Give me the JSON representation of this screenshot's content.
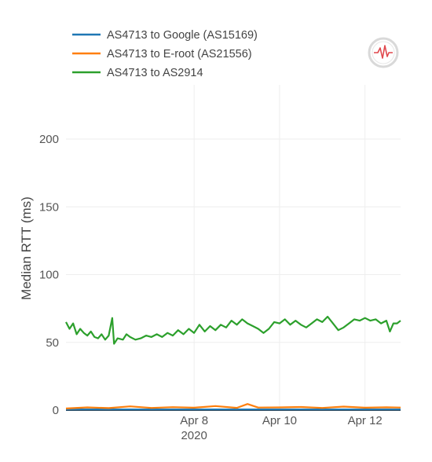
{
  "chart_data": {
    "type": "line",
    "title": "",
    "xlabel": "",
    "ylabel": "Median RTT (ms)",
    "ylim": [
      0,
      240
    ],
    "y_ticks": [
      0,
      50,
      100,
      150,
      200
    ],
    "x_range": [
      "2020-04-05T00:00",
      "2020-04-12T20:00"
    ],
    "x_ticks": [
      {
        "date": "2020-04-08",
        "label": "Apr 8",
        "sublabel": "2020"
      },
      {
        "date": "2020-04-10",
        "label": "Apr 10",
        "sublabel": ""
      },
      {
        "date": "2020-04-12",
        "label": "Apr 12",
        "sublabel": ""
      }
    ],
    "grid": true,
    "legend_position": "top-left",
    "series": [
      {
        "name": "AS4713 to Google (AS15169)",
        "color": "#1f77b4",
        "points": [
          [
            "2020-04-05T00:00",
            0.5
          ],
          [
            "2020-04-07T00:00",
            0.5
          ],
          [
            "2020-04-09T00:00",
            0.5
          ],
          [
            "2020-04-11T00:00",
            0.5
          ],
          [
            "2020-04-12T20:00",
            0.5
          ]
        ]
      },
      {
        "name": "AS4713 to E-root (AS21556)",
        "color": "#ff7f0e",
        "points": [
          [
            "2020-04-05T00:00",
            1.2
          ],
          [
            "2020-04-05T12:00",
            2.0
          ],
          [
            "2020-04-06T00:00",
            1.5
          ],
          [
            "2020-04-06T12:00",
            2.8
          ],
          [
            "2020-04-07T00:00",
            1.6
          ],
          [
            "2020-04-07T12:00",
            2.2
          ],
          [
            "2020-04-08T00:00",
            1.8
          ],
          [
            "2020-04-08T12:00",
            3.0
          ],
          [
            "2020-04-09T00:00",
            1.7
          ],
          [
            "2020-04-09T06:00",
            4.5
          ],
          [
            "2020-04-09T12:00",
            1.9
          ],
          [
            "2020-04-10T00:00",
            2.0
          ],
          [
            "2020-04-10T12:00",
            2.3
          ],
          [
            "2020-04-11T00:00",
            1.6
          ],
          [
            "2020-04-11T12:00",
            2.6
          ],
          [
            "2020-04-12T00:00",
            1.8
          ],
          [
            "2020-04-12T12:00",
            2.1
          ],
          [
            "2020-04-12T20:00",
            1.9
          ]
        ]
      },
      {
        "name": "AS4713 to AS2914",
        "color": "#2ca02c",
        "points": [
          [
            "2020-04-05T00:00",
            65
          ],
          [
            "2020-04-05T02:00",
            60
          ],
          [
            "2020-04-05T04:00",
            64
          ],
          [
            "2020-04-05T06:00",
            56
          ],
          [
            "2020-04-05T08:00",
            60
          ],
          [
            "2020-04-05T10:00",
            57
          ],
          [
            "2020-04-05T12:00",
            55
          ],
          [
            "2020-04-05T14:00",
            58
          ],
          [
            "2020-04-05T16:00",
            54
          ],
          [
            "2020-04-05T18:00",
            53
          ],
          [
            "2020-04-05T20:00",
            56
          ],
          [
            "2020-04-05T22:00",
            52
          ],
          [
            "2020-04-06T00:00",
            55
          ],
          [
            "2020-04-06T02:00",
            68
          ],
          [
            "2020-04-06T03:00",
            49
          ],
          [
            "2020-04-06T05:00",
            53
          ],
          [
            "2020-04-06T08:00",
            52
          ],
          [
            "2020-04-06T10:00",
            56
          ],
          [
            "2020-04-06T12:00",
            54
          ],
          [
            "2020-04-06T15:00",
            52
          ],
          [
            "2020-04-06T18:00",
            53
          ],
          [
            "2020-04-06T21:00",
            55
          ],
          [
            "2020-04-07T00:00",
            54
          ],
          [
            "2020-04-07T03:00",
            56
          ],
          [
            "2020-04-07T06:00",
            54
          ],
          [
            "2020-04-07T09:00",
            57
          ],
          [
            "2020-04-07T12:00",
            55
          ],
          [
            "2020-04-07T15:00",
            59
          ],
          [
            "2020-04-07T18:00",
            56
          ],
          [
            "2020-04-07T21:00",
            60
          ],
          [
            "2020-04-08T00:00",
            57
          ],
          [
            "2020-04-08T03:00",
            63
          ],
          [
            "2020-04-08T06:00",
            58
          ],
          [
            "2020-04-08T09:00",
            62
          ],
          [
            "2020-04-08T12:00",
            59
          ],
          [
            "2020-04-08T15:00",
            63
          ],
          [
            "2020-04-08T18:00",
            61
          ],
          [
            "2020-04-08T21:00",
            66
          ],
          [
            "2020-04-09T00:00",
            63
          ],
          [
            "2020-04-09T03:00",
            67
          ],
          [
            "2020-04-09T06:00",
            64
          ],
          [
            "2020-04-09T09:00",
            62
          ],
          [
            "2020-04-09T12:00",
            60
          ],
          [
            "2020-04-09T15:00",
            57
          ],
          [
            "2020-04-09T18:00",
            60
          ],
          [
            "2020-04-09T21:00",
            65
          ],
          [
            "2020-04-10T00:00",
            64
          ],
          [
            "2020-04-10T03:00",
            67
          ],
          [
            "2020-04-10T06:00",
            63
          ],
          [
            "2020-04-10T09:00",
            66
          ],
          [
            "2020-04-10T12:00",
            63
          ],
          [
            "2020-04-10T15:00",
            61
          ],
          [
            "2020-04-10T18:00",
            64
          ],
          [
            "2020-04-10T21:00",
            67
          ],
          [
            "2020-04-11T00:00",
            65
          ],
          [
            "2020-04-11T03:00",
            69
          ],
          [
            "2020-04-11T06:00",
            64
          ],
          [
            "2020-04-11T09:00",
            59
          ],
          [
            "2020-04-11T12:00",
            61
          ],
          [
            "2020-04-11T15:00",
            64
          ],
          [
            "2020-04-11T18:00",
            67
          ],
          [
            "2020-04-11T21:00",
            66
          ],
          [
            "2020-04-12T00:00",
            68
          ],
          [
            "2020-04-12T03:00",
            66
          ],
          [
            "2020-04-12T06:00",
            67
          ],
          [
            "2020-04-12T09:00",
            64
          ],
          [
            "2020-04-12T12:00",
            66
          ],
          [
            "2020-04-12T14:00",
            58
          ],
          [
            "2020-04-12T16:00",
            64
          ],
          [
            "2020-04-12T18:00",
            64
          ],
          [
            "2020-04-12T20:00",
            66
          ]
        ]
      }
    ]
  },
  "logo": {
    "icon": "ihr-logo-icon"
  }
}
